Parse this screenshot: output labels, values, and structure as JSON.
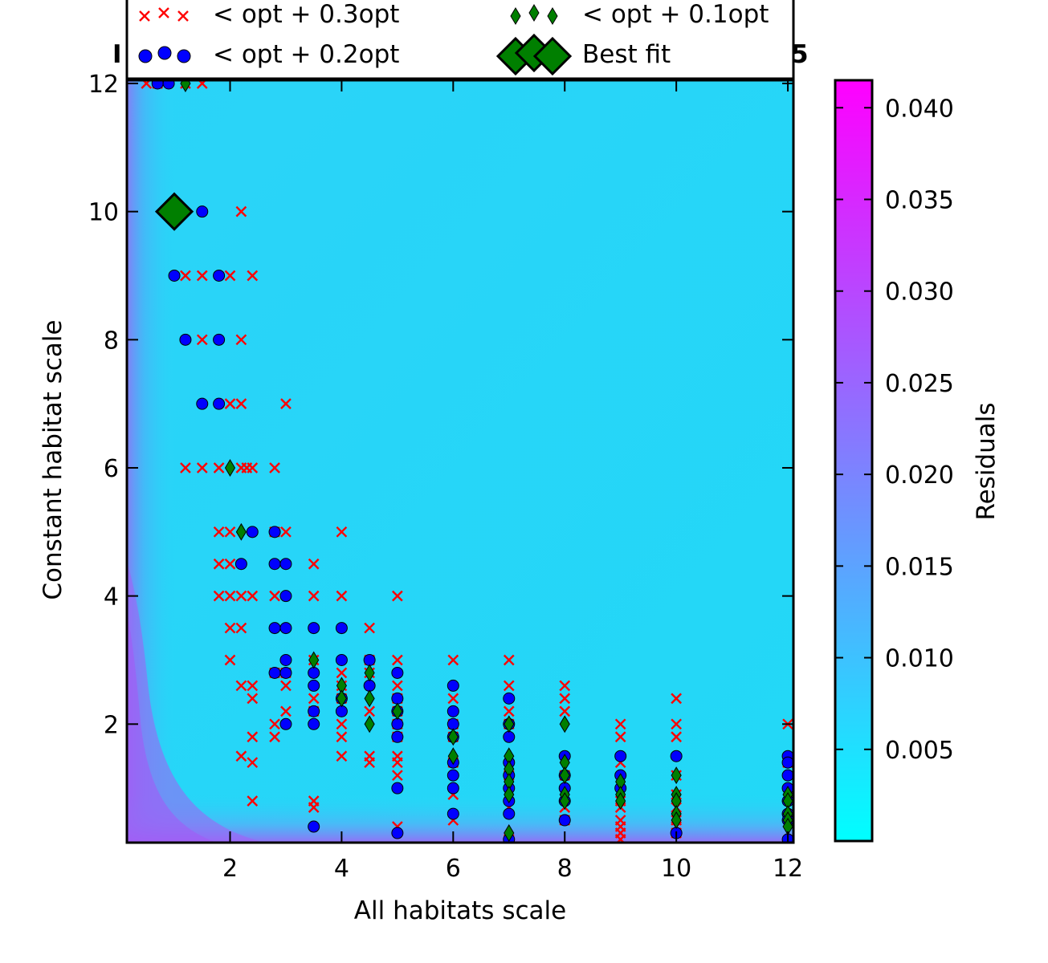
{
  "chart_data": {
    "type": "heatmap",
    "title_left": "I",
    "title_right": "5",
    "xlabel": "All habitats scale",
    "ylabel": "Constant habitat scale",
    "xlim": [
      0.15,
      12.1
    ],
    "ylim": [
      0.15,
      12.05
    ],
    "xticks": [
      2,
      4,
      6,
      8,
      10,
      12
    ],
    "yticks": [
      2,
      4,
      6,
      8,
      10,
      12
    ],
    "grid": false,
    "colorbar": {
      "label": "Residuals",
      "range": [
        0.0,
        0.0415
      ],
      "ticks": [
        "0.005",
        "0.010",
        "0.015",
        "0.020",
        "0.025",
        "0.030",
        "0.035",
        "0.040"
      ],
      "tick_values": [
        0.005,
        0.01,
        0.015,
        0.02,
        0.025,
        0.03,
        0.035,
        0.04
      ],
      "colormap": [
        "#00ffff",
        "#ff00ff"
      ]
    },
    "legend": {
      "placement": "top",
      "entries": [
        {
          "label": "< opt + 0.3opt",
          "marker": "x",
          "color": "#ff0000"
        },
        {
          "label": "< opt + 0.1opt",
          "marker": "thin_diamond",
          "color": "#007f00"
        },
        {
          "label": "< opt + 0.2opt",
          "marker": "circle",
          "color": "#0000ff"
        },
        {
          "label": "Best fit",
          "marker": "diamond",
          "color": "#007f00"
        }
      ]
    },
    "series": [
      {
        "name": "< opt + 0.3opt",
        "marker": "x",
        "color": "#ff0000",
        "points": [
          [
            0.5,
            12
          ],
          [
            0.7,
            12
          ],
          [
            1.2,
            12
          ],
          [
            1.5,
            12
          ],
          [
            2.2,
            10
          ],
          [
            1.2,
            9
          ],
          [
            1.5,
            9
          ],
          [
            2,
            9
          ],
          [
            2.4,
            9
          ],
          [
            1.5,
            8
          ],
          [
            2.2,
            8
          ],
          [
            2,
            7
          ],
          [
            2.2,
            7
          ],
          [
            3,
            7
          ],
          [
            1.2,
            6
          ],
          [
            1.5,
            6
          ],
          [
            1.8,
            6
          ],
          [
            2.2,
            6
          ],
          [
            2.3,
            6
          ],
          [
            2.4,
            6
          ],
          [
            2.8,
            6
          ],
          [
            1.8,
            5
          ],
          [
            2,
            5
          ],
          [
            2.8,
            5
          ],
          [
            3,
            5
          ],
          [
            4,
            5
          ],
          [
            1.8,
            4.5
          ],
          [
            2,
            4.5
          ],
          [
            3.5,
            4.5
          ],
          [
            1.8,
            4
          ],
          [
            2,
            4
          ],
          [
            2.2,
            4
          ],
          [
            2.4,
            4
          ],
          [
            2.8,
            4
          ],
          [
            3.5,
            4
          ],
          [
            4,
            4
          ],
          [
            5,
            4
          ],
          [
            2,
            3.5
          ],
          [
            2.2,
            3.5
          ],
          [
            4.5,
            3.5
          ],
          [
            2,
            3
          ],
          [
            3.5,
            3
          ],
          [
            4.5,
            3
          ],
          [
            5,
            3
          ],
          [
            6,
            3
          ],
          [
            7,
            3
          ],
          [
            2.8,
            2.8
          ],
          [
            3,
            2.8
          ],
          [
            4,
            2.8
          ],
          [
            4.5,
            2.8
          ],
          [
            2.2,
            2.6
          ],
          [
            2.4,
            2.6
          ],
          [
            3,
            2.6
          ],
          [
            4,
            2.6
          ],
          [
            5,
            2.6
          ],
          [
            7,
            2.6
          ],
          [
            8,
            2.6
          ],
          [
            2.4,
            2.4
          ],
          [
            3.5,
            2.4
          ],
          [
            4,
            2.4
          ],
          [
            5,
            2.4
          ],
          [
            6,
            2.4
          ],
          [
            8,
            2.4
          ],
          [
            10,
            2.4
          ],
          [
            3,
            2.2
          ],
          [
            3.5,
            2.2
          ],
          [
            4.5,
            2.2
          ],
          [
            5,
            2.2
          ],
          [
            7,
            2.2
          ],
          [
            8,
            2.2
          ],
          [
            2.8,
            2
          ],
          [
            4,
            2
          ],
          [
            5,
            2
          ],
          [
            6,
            2
          ],
          [
            7,
            2
          ],
          [
            9,
            2
          ],
          [
            10,
            2
          ],
          [
            12,
            2
          ],
          [
            2.4,
            1.8
          ],
          [
            2.8,
            1.8
          ],
          [
            4,
            1.8
          ],
          [
            5,
            1.8
          ],
          [
            6,
            1.8
          ],
          [
            9,
            1.8
          ],
          [
            10,
            1.8
          ],
          [
            4.5,
            1.5
          ],
          [
            5,
            1.5
          ],
          [
            2.2,
            1.5
          ],
          [
            4,
            1.5
          ],
          [
            2.4,
            1.4
          ],
          [
            4.5,
            1.4
          ],
          [
            5,
            1.4
          ],
          [
            6,
            1.4
          ],
          [
            9,
            1.4
          ],
          [
            12,
            1.4
          ],
          [
            5,
            1.2
          ],
          [
            7,
            1.2
          ],
          [
            8,
            1.2
          ],
          [
            10,
            1.2
          ],
          [
            6,
            0.9
          ],
          [
            7,
            0.9
          ],
          [
            8,
            0.9
          ],
          [
            10,
            0.9
          ],
          [
            2.4,
            0.8
          ],
          [
            3.5,
            0.8
          ],
          [
            9,
            0.8
          ],
          [
            3.5,
            0.7
          ],
          [
            7,
            0.7
          ],
          [
            8,
            0.7
          ],
          [
            9,
            0.7
          ],
          [
            10,
            0.7
          ],
          [
            6,
            0.5
          ],
          [
            8,
            0.5
          ],
          [
            9,
            0.5
          ],
          [
            10,
            0.5
          ],
          [
            5,
            0.4
          ],
          [
            9,
            0.4
          ],
          [
            10,
            0.4
          ],
          [
            9,
            0.3
          ],
          [
            10,
            0.3
          ],
          [
            9,
            0.2
          ],
          [
            7,
            0.2
          ]
        ]
      },
      {
        "name": "< opt + 0.2opt",
        "marker": "circle",
        "color": "#0000ff",
        "points": [
          [
            0.7,
            12
          ],
          [
            0.9,
            12
          ],
          [
            1.5,
            10
          ],
          [
            1,
            9
          ],
          [
            1.8,
            9
          ],
          [
            1.2,
            8
          ],
          [
            1.8,
            8
          ],
          [
            1.5,
            7
          ],
          [
            1.8,
            7
          ],
          [
            2.4,
            5
          ],
          [
            2.8,
            5
          ],
          [
            2.2,
            4.5
          ],
          [
            2.8,
            4.5
          ],
          [
            3,
            4.5
          ],
          [
            3,
            4
          ],
          [
            2.8,
            3.5
          ],
          [
            3,
            3.5
          ],
          [
            3.5,
            3.5
          ],
          [
            4,
            3.5
          ],
          [
            3,
            3
          ],
          [
            4,
            3
          ],
          [
            4.5,
            3
          ],
          [
            2.8,
            2.8
          ],
          [
            3,
            2.8
          ],
          [
            3.5,
            2.8
          ],
          [
            5,
            2.8
          ],
          [
            3.5,
            2.6
          ],
          [
            4.5,
            2.6
          ],
          [
            6,
            2.6
          ],
          [
            4,
            2.4
          ],
          [
            5,
            2.4
          ],
          [
            7,
            2.4
          ],
          [
            3.5,
            2.2
          ],
          [
            4,
            2.2
          ],
          [
            5,
            2.2
          ],
          [
            6,
            2.2
          ],
          [
            3,
            2
          ],
          [
            3.5,
            2
          ],
          [
            5,
            2
          ],
          [
            6,
            2
          ],
          [
            7,
            2
          ],
          [
            5,
            1.8
          ],
          [
            6,
            1.8
          ],
          [
            7,
            1.8
          ],
          [
            8,
            1.5
          ],
          [
            9,
            1.5
          ],
          [
            10,
            1.5
          ],
          [
            12,
            1.5
          ],
          [
            6,
            1.4
          ],
          [
            7,
            1.4
          ],
          [
            12,
            1.4
          ],
          [
            6,
            1.2
          ],
          [
            7,
            1.2
          ],
          [
            8,
            1.2
          ],
          [
            9,
            1.2
          ],
          [
            12,
            1.2
          ],
          [
            5,
            1
          ],
          [
            6,
            1
          ],
          [
            7,
            1
          ],
          [
            8,
            1
          ],
          [
            9,
            1
          ],
          [
            12,
            1
          ],
          [
            7,
            0.8
          ],
          [
            8,
            0.8
          ],
          [
            12,
            0.8
          ],
          [
            6,
            0.6
          ],
          [
            7,
            0.6
          ],
          [
            12,
            0.6
          ],
          [
            8,
            0.5
          ],
          [
            12,
            0.5
          ],
          [
            3.5,
            0.4
          ],
          [
            5,
            0.3
          ],
          [
            10,
            0.3
          ],
          [
            7,
            0.2
          ],
          [
            12,
            0.2
          ]
        ]
      },
      {
        "name": "< opt + 0.1opt",
        "marker": "thin_diamond",
        "color": "#007f00",
        "points": [
          [
            1.2,
            12
          ],
          [
            2,
            6
          ],
          [
            2.2,
            5
          ],
          [
            3.5,
            3
          ],
          [
            4,
            2.6
          ],
          [
            4,
            2.4
          ],
          [
            4.5,
            2.8
          ],
          [
            4.5,
            2.4
          ],
          [
            4.5,
            2
          ],
          [
            5,
            2.2
          ],
          [
            6,
            1.8
          ],
          [
            6,
            1.5
          ],
          [
            7,
            2
          ],
          [
            7,
            1.5
          ],
          [
            7,
            1.3
          ],
          [
            7,
            1.1
          ],
          [
            7,
            0.9
          ],
          [
            7,
            0.3
          ],
          [
            8,
            2
          ],
          [
            8,
            1.4
          ],
          [
            8,
            1.2
          ],
          [
            8,
            0.9
          ],
          [
            8,
            0.8
          ],
          [
            9,
            1.1
          ],
          [
            9,
            0.9
          ],
          [
            9,
            0.8
          ],
          [
            10,
            1.2
          ],
          [
            10,
            0.9
          ],
          [
            10,
            0.8
          ],
          [
            10,
            0.6
          ],
          [
            10,
            0.5
          ],
          [
            12,
            0.9
          ],
          [
            12,
            0.8
          ],
          [
            12,
            0.6
          ],
          [
            12,
            0.5
          ],
          [
            12,
            0.4
          ]
        ]
      },
      {
        "name": "Best fit",
        "marker": "diamond",
        "color": "#007f00",
        "points": [
          [
            1,
            10
          ]
        ]
      }
    ]
  }
}
